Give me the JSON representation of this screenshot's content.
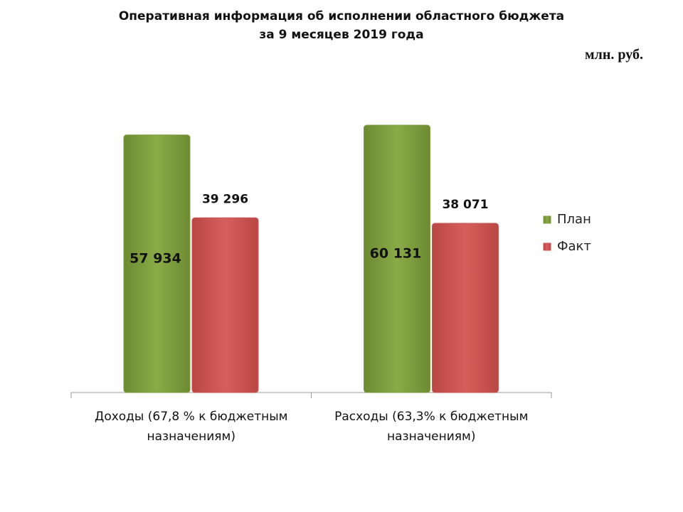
{
  "chart_data": {
    "type": "bar",
    "title": "Оперативная информация об исполнении областного бюджета\nза 9 месяцев 2019 года",
    "unit_label": "млн. руб.",
    "categories": [
      "Доходы (67,8 % к бюджетным назначениям)",
      "Расходы (63,3% к бюджетным назначениям)"
    ],
    "series": [
      {
        "name": "План",
        "color": "#7f9e3e",
        "values": [
          57934,
          60131
        ],
        "value_labels": [
          "57 934",
          "60 131"
        ]
      },
      {
        "name": "Факт",
        "color": "#cd5653",
        "values": [
          39296,
          38071
        ],
        "value_labels": [
          "39 296",
          "38 071"
        ]
      }
    ],
    "legend": "right"
  }
}
